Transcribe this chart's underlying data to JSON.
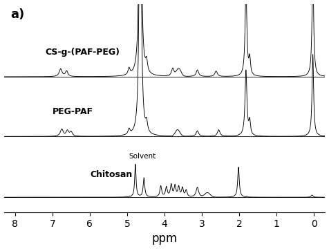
{
  "title": "a)",
  "xlabel": "ppm",
  "xlim": [
    8.3,
    -0.3
  ],
  "background_color": "#ffffff",
  "xticks": [
    8,
    7,
    6,
    5,
    4,
    3,
    2,
    1,
    0
  ],
  "spectra_offsets": [
    0.66,
    0.365,
    0.065
  ],
  "panel_scale": 0.27,
  "label_fontsize": 9,
  "solvent_fontsize": 7.5
}
